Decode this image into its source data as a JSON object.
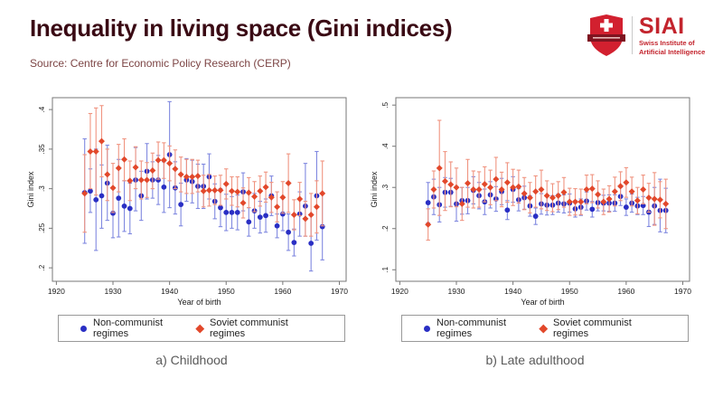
{
  "header": {
    "title": "Inequality in living space (Gini indices)",
    "source": "Source: Centre for Economic Policy Research (CERP)"
  },
  "logo": {
    "acronym": "SIAI",
    "subtitle_line1": "Swiss Institute of",
    "subtitle_line2": "Artificial Intelligence"
  },
  "colors": {
    "title": "#3a0a14",
    "source": "#7d4545",
    "brand_red": "#c3242d",
    "shield_red": "#d2202f",
    "banner_red": "#7e1420",
    "axis": "#777777",
    "tick_text": "#1a1a1a",
    "caption": "#595959",
    "legend_border": "#999999",
    "legend_text": "#222222",
    "noncommunist_blue": "#2a2fc4",
    "noncommunist_err": "#8089e0",
    "soviet_red": "#e2482b",
    "soviet_err": "#f09480"
  },
  "legend": {
    "items": [
      {
        "label": "Non-communist regimes",
        "marker": "circle",
        "color": "#2a2fc4"
      },
      {
        "label": "Soviet communist regimes",
        "marker": "diamond",
        "color": "#e2482b"
      }
    ]
  },
  "chart_data": [
    {
      "type": "scatter",
      "caption": "a) Childhood",
      "xlabel": "Year of birth",
      "ylabel": "Gini index",
      "xlim": [
        1919.3,
        1971.2
      ],
      "xticks": [
        1920,
        1930,
        1940,
        1950,
        1960,
        1970
      ],
      "ylim": [
        0.183,
        0.415
      ],
      "yticks": [
        0.2,
        0.25,
        0.3,
        0.35,
        0.4
      ],
      "ytick_labels": [
        ".2",
        ".25",
        ".3",
        ".35",
        ".4"
      ],
      "x_start": 1925,
      "grid": false,
      "legend_position": "bottom",
      "series": [
        {
          "name": "Non-communist regimes",
          "marker": "circle",
          "color": "#2a2fc4",
          "err_color": "#8089e0",
          "values": [
            0.295,
            0.297,
            0.286,
            0.291,
            0.307,
            0.269,
            0.288,
            0.278,
            0.275,
            0.311,
            0.291,
            0.322,
            0.311,
            0.311,
            0.302,
            0.343,
            0.301,
            0.28,
            0.311,
            0.309,
            0.303,
            0.303,
            0.315,
            0.284,
            0.276,
            0.27,
            0.27,
            0.27,
            0.296,
            0.258,
            0.272,
            0.264,
            0.266,
            0.291,
            0.253,
            0.268,
            0.245,
            0.232,
            0.268,
            0.278,
            0.231,
            0.291,
            0.252
          ],
          "lo": [
            0.231,
            0.27,
            0.222,
            0.25,
            0.26,
            0.238,
            0.239,
            0.246,
            0.243,
            0.272,
            0.26,
            0.287,
            0.288,
            0.28,
            0.27,
            0.276,
            0.268,
            0.253,
            0.284,
            0.282,
            0.275,
            0.275,
            0.287,
            0.262,
            0.252,
            0.247,
            0.25,
            0.248,
            0.272,
            0.24,
            0.25,
            0.244,
            0.245,
            0.266,
            0.238,
            0.247,
            0.222,
            0.215,
            0.24,
            0.24,
            0.196,
            0.235,
            0.21
          ],
          "hi": [
            0.363,
            0.325,
            0.35,
            0.33,
            0.355,
            0.3,
            0.337,
            0.31,
            0.307,
            0.352,
            0.322,
            0.357,
            0.334,
            0.342,
            0.334,
            0.41,
            0.334,
            0.307,
            0.338,
            0.336,
            0.331,
            0.331,
            0.344,
            0.306,
            0.3,
            0.293,
            0.29,
            0.292,
            0.32,
            0.276,
            0.294,
            0.284,
            0.287,
            0.316,
            0.268,
            0.289,
            0.268,
            0.249,
            0.296,
            0.332,
            0.266,
            0.347,
            0.294
          ]
        },
        {
          "name": "Soviet communist regimes",
          "marker": "diamond",
          "color": "#e2482b",
          "err_color": "#f09480",
          "values": [
            0.294,
            0.347,
            0.347,
            0.36,
            0.318,
            0.301,
            0.326,
            0.337,
            0.31,
            0.327,
            0.311,
            0.311,
            0.323,
            0.336,
            0.336,
            0.332,
            0.325,
            0.318,
            0.315,
            0.315,
            0.316,
            0.297,
            0.298,
            0.298,
            0.298,
            0.306,
            0.297,
            0.296,
            0.282,
            0.295,
            0.29,
            0.297,
            0.302,
            0.289,
            0.277,
            0.289,
            0.307,
            0.267,
            0.287,
            0.262,
            0.267,
            0.277,
            0.294
          ],
          "lo": [
            0.245,
            0.3,
            0.292,
            0.315,
            0.285,
            0.27,
            0.296,
            0.31,
            0.285,
            0.3,
            0.287,
            0.289,
            0.3,
            0.312,
            0.313,
            0.31,
            0.3,
            0.296,
            0.294,
            0.294,
            0.296,
            0.277,
            0.278,
            0.28,
            0.279,
            0.287,
            0.279,
            0.277,
            0.263,
            0.276,
            0.271,
            0.278,
            0.283,
            0.27,
            0.258,
            0.269,
            0.27,
            0.248,
            0.266,
            0.24,
            0.24,
            0.244,
            0.253
          ],
          "hi": [
            0.343,
            0.395,
            0.402,
            0.405,
            0.35,
            0.332,
            0.356,
            0.363,
            0.335,
            0.353,
            0.335,
            0.333,
            0.345,
            0.359,
            0.358,
            0.354,
            0.349,
            0.34,
            0.337,
            0.337,
            0.336,
            0.317,
            0.318,
            0.316,
            0.317,
            0.325,
            0.315,
            0.315,
            0.301,
            0.314,
            0.309,
            0.316,
            0.321,
            0.308,
            0.296,
            0.309,
            0.344,
            0.286,
            0.308,
            0.284,
            0.294,
            0.31,
            0.335
          ]
        }
      ]
    },
    {
      "type": "scatter",
      "caption": "b) Late adulthood",
      "xlabel": "Year of birth",
      "ylabel": "Gini index",
      "xlim": [
        1919.3,
        1971.2
      ],
      "xticks": [
        1920,
        1930,
        1940,
        1950,
        1960,
        1970
      ],
      "ylim": [
        0.072,
        0.518
      ],
      "yticks": [
        0.1,
        0.2,
        0.3,
        0.4,
        0.5
      ],
      "ytick_labels": [
        ".1",
        ".2",
        ".3",
        ".4",
        ".5"
      ],
      "x_start": 1925,
      "grid": false,
      "legend_position": "bottom",
      "series": [
        {
          "name": "Non-communist regimes",
          "marker": "circle",
          "color": "#2a2fc4",
          "err_color": "#8089e0",
          "values": [
            0.263,
            0.277,
            0.258,
            0.288,
            0.288,
            0.26,
            0.268,
            0.268,
            0.293,
            0.28,
            0.265,
            0.282,
            0.272,
            0.29,
            0.245,
            0.295,
            0.27,
            0.275,
            0.255,
            0.23,
            0.26,
            0.257,
            0.257,
            0.262,
            0.26,
            0.262,
            0.248,
            0.252,
            0.267,
            0.247,
            0.263,
            0.262,
            0.262,
            0.262,
            0.278,
            0.252,
            0.262,
            0.255,
            0.256,
            0.24,
            0.255,
            0.244,
            0.244
          ],
          "lo": [
            0.214,
            0.234,
            0.216,
            0.252,
            0.254,
            0.218,
            0.235,
            0.236,
            0.26,
            0.248,
            0.234,
            0.25,
            0.242,
            0.258,
            0.222,
            0.264,
            0.243,
            0.247,
            0.23,
            0.21,
            0.235,
            0.233,
            0.234,
            0.24,
            0.238,
            0.24,
            0.228,
            0.232,
            0.245,
            0.228,
            0.243,
            0.243,
            0.242,
            0.242,
            0.256,
            0.232,
            0.24,
            0.234,
            0.234,
            0.205,
            0.21,
            0.192,
            0.19
          ],
          "hi": [
            0.312,
            0.32,
            0.3,
            0.324,
            0.322,
            0.302,
            0.3,
            0.3,
            0.326,
            0.312,
            0.296,
            0.314,
            0.302,
            0.322,
            0.268,
            0.326,
            0.297,
            0.303,
            0.28,
            0.25,
            0.285,
            0.281,
            0.28,
            0.284,
            0.282,
            0.284,
            0.268,
            0.272,
            0.289,
            0.266,
            0.283,
            0.281,
            0.282,
            0.282,
            0.3,
            0.272,
            0.284,
            0.276,
            0.278,
            0.275,
            0.3,
            0.32,
            0.298
          ]
        },
        {
          "name": "Soviet communist regimes",
          "marker": "diamond",
          "color": "#e2482b",
          "err_color": "#f09480",
          "values": [
            0.21,
            0.295,
            0.347,
            0.315,
            0.307,
            0.3,
            0.26,
            0.31,
            0.295,
            0.295,
            0.308,
            0.3,
            0.32,
            0.295,
            0.312,
            0.3,
            0.302,
            0.285,
            0.275,
            0.29,
            0.295,
            0.28,
            0.275,
            0.28,
            0.288,
            0.265,
            0.265,
            0.265,
            0.295,
            0.297,
            0.283,
            0.265,
            0.272,
            0.29,
            0.303,
            0.312,
            0.29,
            0.268,
            0.295,
            0.275,
            0.272,
            0.27,
            0.26
          ],
          "lo": [
            0.172,
            0.25,
            0.232,
            0.244,
            0.253,
            0.253,
            0.22,
            0.252,
            0.25,
            0.252,
            0.265,
            0.258,
            0.268,
            0.253,
            0.264,
            0.256,
            0.262,
            0.246,
            0.238,
            0.252,
            0.248,
            0.244,
            0.241,
            0.246,
            0.252,
            0.232,
            0.233,
            0.234,
            0.26,
            0.263,
            0.25,
            0.234,
            0.24,
            0.255,
            0.268,
            0.276,
            0.255,
            0.236,
            0.26,
            0.24,
            0.208,
            0.226,
            0.2
          ],
          "hi": [
            0.248,
            0.34,
            0.463,
            0.387,
            0.362,
            0.347,
            0.3,
            0.368,
            0.34,
            0.338,
            0.35,
            0.342,
            0.373,
            0.337,
            0.36,
            0.344,
            0.342,
            0.324,
            0.312,
            0.328,
            0.342,
            0.316,
            0.309,
            0.314,
            0.324,
            0.298,
            0.297,
            0.296,
            0.33,
            0.331,
            0.316,
            0.296,
            0.304,
            0.325,
            0.338,
            0.348,
            0.325,
            0.3,
            0.33,
            0.31,
            0.336,
            0.314,
            0.32
          ]
        }
      ]
    }
  ]
}
